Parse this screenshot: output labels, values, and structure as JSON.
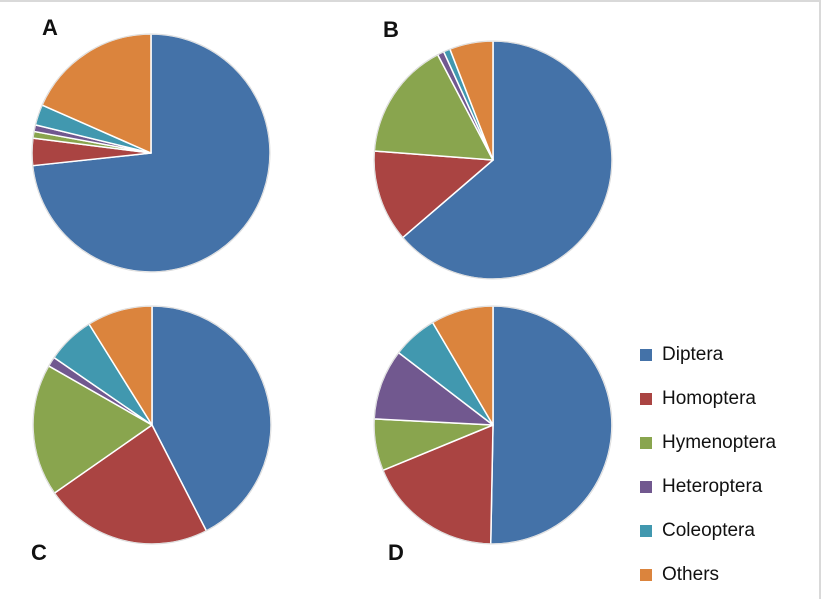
{
  "colors": {
    "Diptera": "#4472a8",
    "Homoptera": "#aa4442",
    "Hymenoptera": "#89a54e",
    "Heteroptera": "#71588f",
    "Coleoptera": "#4198af",
    "Others": "#db843d"
  },
  "legend": {
    "items": [
      "Diptera",
      "Homoptera",
      "Hymenoptera",
      "Heteroptera",
      "Coleoptera",
      "Others"
    ]
  },
  "chart_data": [
    {
      "type": "pie",
      "panel": "A",
      "labels": [
        "Diptera",
        "Homoptera",
        "Hymenoptera",
        "Heteroptera",
        "Coleoptera",
        "Others"
      ],
      "values": [
        73.3,
        3.7,
        0.9,
        0.9,
        2.8,
        18.4
      ]
    },
    {
      "type": "pie",
      "panel": "B",
      "labels": [
        "Diptera",
        "Homoptera",
        "Hymenoptera",
        "Heteroptera",
        "Coleoptera",
        "Others"
      ],
      "values": [
        63.7,
        12.5,
        16.1,
        0.9,
        0.9,
        5.9
      ]
    },
    {
      "type": "pie",
      "panel": "C",
      "labels": [
        "Diptera",
        "Homoptera",
        "Hymenoptera",
        "Heteroptera",
        "Coleoptera",
        "Others"
      ],
      "values": [
        41.6,
        22.4,
        17.6,
        1.3,
        6.4,
        8.7
      ]
    },
    {
      "type": "pie",
      "panel": "D",
      "labels": [
        "Diptera",
        "Homoptera",
        "Hymenoptera",
        "Heteroptera",
        "Coleoptera",
        "Others"
      ],
      "values": [
        49.3,
        18.1,
        6.9,
        9.4,
        6.0,
        8.3
      ]
    }
  ]
}
